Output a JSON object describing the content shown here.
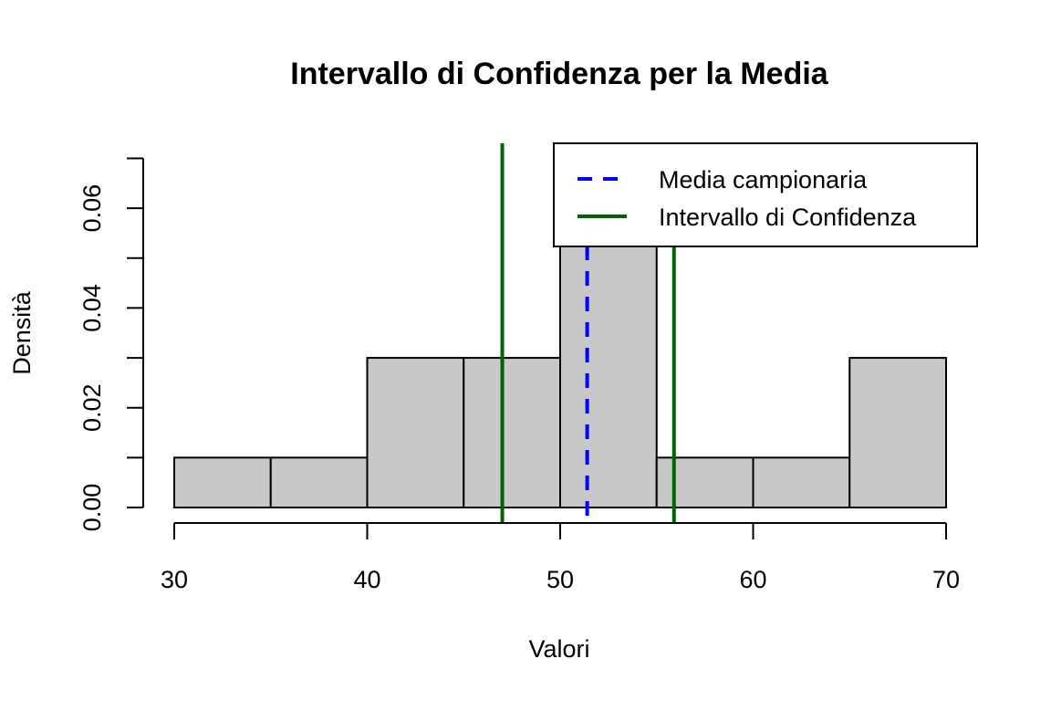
{
  "chart_data": {
    "type": "bar",
    "title": "Intervallo di Confidenza per la Media",
    "xlabel": "Valori",
    "ylabel": "Densità",
    "xlim": [
      30,
      70
    ],
    "ylim": [
      0,
      0.07
    ],
    "x_ticks": [
      "30",
      "40",
      "50",
      "60",
      "70"
    ],
    "y_ticks": [
      "0.00",
      "0.02",
      "0.04",
      "0.06"
    ],
    "bins": [
      {
        "from": 30,
        "to": 35,
        "density": 0.01
      },
      {
        "from": 35,
        "to": 40,
        "density": 0.01
      },
      {
        "from": 40,
        "to": 45,
        "density": 0.03
      },
      {
        "from": 45,
        "to": 50,
        "density": 0.03
      },
      {
        "from": 50,
        "to": 55,
        "density": 0.07
      },
      {
        "from": 55,
        "to": 60,
        "density": 0.01
      },
      {
        "from": 60,
        "to": 65,
        "density": 0.01
      },
      {
        "from": 65,
        "to": 70,
        "density": 0.03
      }
    ],
    "bar_color": "#c8c8c8",
    "mean": 51.4,
    "mean_color": "#0000ff",
    "ci": [
      47.0,
      55.9
    ],
    "ci_color": "#006400",
    "grid": false,
    "legend_position": "top-right",
    "legend": [
      {
        "label": "Media campionaria",
        "style": "dashed",
        "color": "#0000ff"
      },
      {
        "label": "Intervallo di Confidenza",
        "style": "solid",
        "color": "#006400"
      }
    ]
  }
}
